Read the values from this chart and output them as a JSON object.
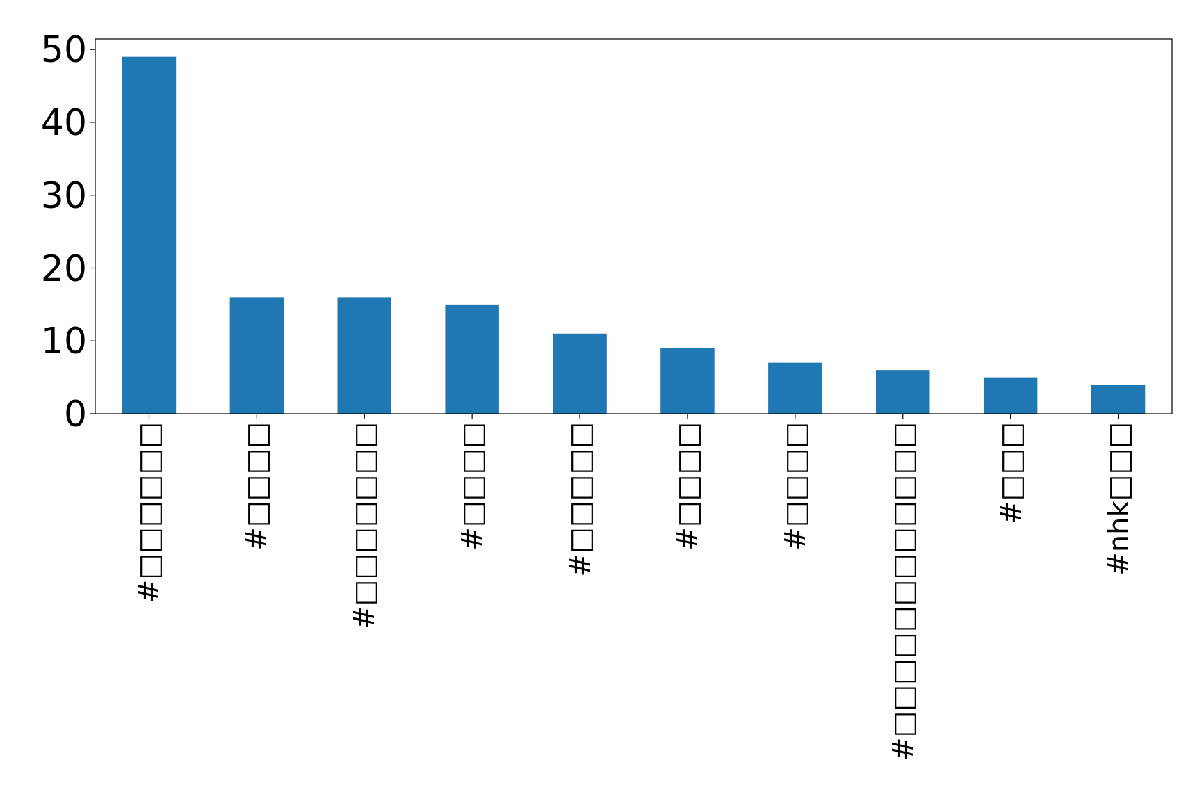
{
  "chart_data": {
    "type": "bar",
    "categories": [
      "#□□□□□□",
      "#□□□□",
      "#□□□□□□□",
      "#□□□□",
      "#□□□□□",
      "#□□□□",
      "#□□□□",
      "#□□□□□□□□□□□□",
      "#□□□",
      "#nhk□□□"
    ],
    "values": [
      49,
      16,
      16,
      15,
      11,
      9,
      7,
      6,
      5,
      4
    ],
    "color": "#1f77b4",
    "ylim": [
      0,
      51.45
    ],
    "yticks": [
      0,
      10,
      20,
      30,
      40,
      50
    ]
  }
}
